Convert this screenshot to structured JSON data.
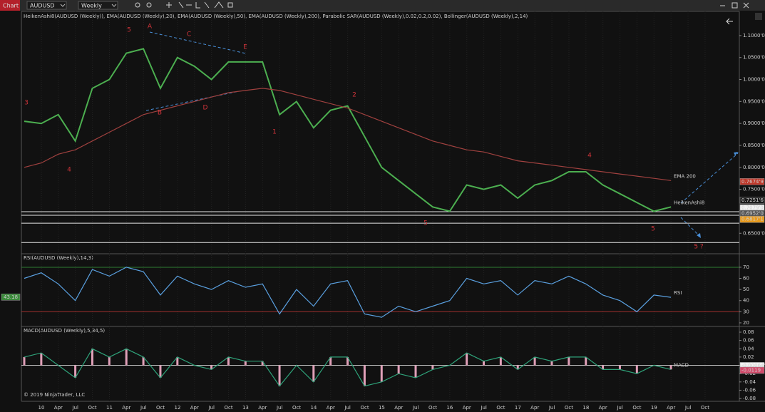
{
  "toolbar": {
    "tab": "Chart",
    "instrument": "AUDUSD",
    "interval": "Weekly"
  },
  "x_axis": {
    "labels": [
      "10",
      "Apr",
      "Jul",
      "Oct",
      "11",
      "Apr",
      "Jul",
      "Oct",
      "12",
      "Apr",
      "Jul",
      "Oct",
      "13",
      "Apr",
      "Jul",
      "Oct",
      "14",
      "Apr",
      "Jul",
      "Oct",
      "15",
      "Apr",
      "Jul",
      "Oct",
      "16",
      "Apr",
      "Jul",
      "Oct",
      "17",
      "Apr",
      "Jul",
      "Oct",
      "18",
      "Apr",
      "Jul",
      "Oct",
      "19",
      "Apr",
      "Jul",
      "Oct"
    ]
  },
  "price_panel": {
    "title": "HeikenAshi8(AUDUSD (Weekly)), EMA(AUDUSD (Weekly),20), EMA(AUDUSD (Weekly),50), EMA(AUDUSD (Weekly),200), Parabolic SAR(AUDUSD (Weekly),0.02,0.2,0.02), Bollinger(AUDUSD (Weekly),2,14)",
    "ylim": [
      0.605,
      1.155
    ],
    "yticks": [
      {
        "value": 1.1,
        "label": "1.1000'0"
      },
      {
        "value": 1.05,
        "label": "1.0500'0"
      },
      {
        "value": 1.0,
        "label": "1.0000'0"
      },
      {
        "value": 0.95,
        "label": "0.9500'0"
      },
      {
        "value": 0.9,
        "label": "0.9000'0"
      },
      {
        "value": 0.85,
        "label": "0.8500'0"
      },
      {
        "value": 0.8,
        "label": "0.8000'0"
      },
      {
        "value": 0.75,
        "label": "0.7500'0"
      },
      {
        "value": 0.65,
        "label": "0.6500'0"
      }
    ],
    "series": [
      {
        "name": "HeikenAshi8",
        "color": "#4caf50",
        "values": [
          0.905,
          0.9,
          0.92,
          0.86,
          0.98,
          1.0,
          1.06,
          1.07,
          0.98,
          1.05,
          1.03,
          1.0,
          1.04,
          1.04,
          1.04,
          0.92,
          0.95,
          0.89,
          0.93,
          0.94,
          0.87,
          0.8,
          0.77,
          0.74,
          0.71,
          0.7,
          0.76,
          0.75,
          0.76,
          0.73,
          0.76,
          0.77,
          0.79,
          0.79,
          0.76,
          0.74,
          0.72,
          0.7,
          0.71
        ]
      },
      {
        "name": "EMA 200",
        "color": "#a0413f",
        "values": [
          0.8,
          0.81,
          0.83,
          0.84,
          0.86,
          0.88,
          0.9,
          0.92,
          0.93,
          0.94,
          0.95,
          0.96,
          0.97,
          0.975,
          0.98,
          0.975,
          0.965,
          0.955,
          0.945,
          0.935,
          0.92,
          0.905,
          0.89,
          0.875,
          0.86,
          0.85,
          0.84,
          0.835,
          0.825,
          0.815,
          0.81,
          0.805,
          0.8,
          0.795,
          0.79,
          0.785,
          0.78,
          0.775,
          0.77
        ]
      }
    ],
    "levels": [
      0.699,
      0.691,
      0.673,
      0.629
    ],
    "tags": [
      {
        "value": 0.76749,
        "label": "0.7674'9",
        "color": "#c0392b"
      },
      {
        "value": 0.72516,
        "label": "0.7251'6",
        "color": "#1a1a1a"
      },
      {
        "value": 0.7079,
        "label": "0.7079'0",
        "color": "#f2f2f2"
      },
      {
        "value": 0.6952,
        "label": "0.6952'0",
        "color": "#555555"
      },
      {
        "value": 0.68171,
        "label": "0.6817'1",
        "color": "#e89a1c"
      }
    ],
    "waves": [
      "5",
      "A",
      "C",
      "E",
      "3",
      "4",
      "B",
      "D",
      "1",
      "2",
      "5",
      "4",
      "5",
      "5 ?"
    ]
  },
  "rsi_panel": {
    "title": "RSI(AUDUSD (Weekly),14,3)",
    "ylim": [
      17.4,
      81.5
    ],
    "yticks": [
      70,
      60,
      50,
      40,
      30,
      20
    ],
    "levels": [
      70,
      30
    ],
    "tag": {
      "value": 43.18,
      "label": "43.18"
    },
    "series": [
      {
        "name": "RSI",
        "color": "#5aa0e0",
        "values": [
          60,
          65,
          55,
          40,
          68,
          62,
          70,
          66,
          45,
          62,
          55,
          50,
          58,
          52,
          55,
          28,
          50,
          35,
          55,
          58,
          28,
          25,
          35,
          30,
          35,
          40,
          60,
          55,
          58,
          45,
          58,
          55,
          62,
          55,
          45,
          40,
          30,
          45,
          43
        ]
      }
    ]
  },
  "macd_panel": {
    "title": "MACD(AUDUSD (Weekly),5,34,5)",
    "ylim": [
      -0.085,
      0.092
    ],
    "yticks": [
      0.08,
      0.06,
      0.04,
      0.02,
      0,
      -0.02,
      -0.04,
      -0.06,
      -0.08
    ],
    "tags": [
      {
        "value": -0.000646,
        "label": "-0.00064'6"
      },
      {
        "value": -0.0119,
        "label": "-0.0119"
      }
    ],
    "series": [
      {
        "name": "MACD",
        "color": "#2fa37a",
        "values": [
          0.02,
          0.03,
          0.0,
          -0.03,
          0.04,
          0.02,
          0.04,
          0.02,
          -0.03,
          0.02,
          0.0,
          -0.01,
          0.02,
          0.01,
          0.01,
          -0.05,
          0.0,
          -0.04,
          0.02,
          0.02,
          -0.05,
          -0.04,
          -0.02,
          -0.03,
          -0.01,
          0.0,
          0.03,
          0.01,
          0.02,
          -0.01,
          0.02,
          0.01,
          0.02,
          0.02,
          -0.01,
          -0.01,
          -0.02,
          0.0,
          -0.01
        ]
      }
    ],
    "copyright": "© 2019 NinjaTrader, LLC"
  }
}
